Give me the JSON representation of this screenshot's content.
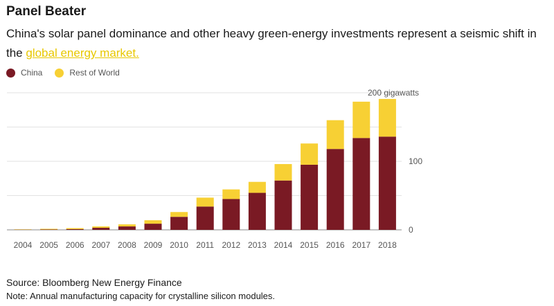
{
  "header": {
    "title": "Panel Beater",
    "subtitle_text": "China's solar panel dominance and other heavy green-energy investments represent a seismic shift in the ",
    "subtitle_link": "global energy market."
  },
  "legend": [
    {
      "name": "China",
      "color": "#7a1a24"
    },
    {
      "name": "Rest of World",
      "color": "#f7d034"
    }
  ],
  "chart_data": {
    "type": "bar",
    "stacked": true,
    "categories": [
      "2004",
      "2005",
      "2006",
      "2007",
      "2008",
      "2009",
      "2010",
      "2011",
      "2012",
      "2013",
      "2014",
      "2015",
      "2016",
      "2017",
      "2018"
    ],
    "series": [
      {
        "name": "China",
        "color": "#7a1a24",
        "values": [
          0.3,
          0.5,
          1,
          3,
          5,
          9,
          19,
          34,
          45,
          54,
          72,
          95,
          118,
          134,
          136
        ]
      },
      {
        "name": "Rest of World",
        "color": "#f7d034",
        "values": [
          0.5,
          1,
          1.5,
          2,
          3,
          5,
          7,
          13,
          14,
          16,
          24,
          31,
          42,
          53,
          55
        ]
      }
    ],
    "yticks": [
      0,
      100
    ],
    "ylim": [
      0,
      200
    ],
    "top_label": "200 gigawatts",
    "grid": true
  },
  "footer": {
    "source": "Source: Bloomberg New Energy Finance",
    "note": "Note: Annual manufacturing capacity for crystalline silicon modules."
  }
}
